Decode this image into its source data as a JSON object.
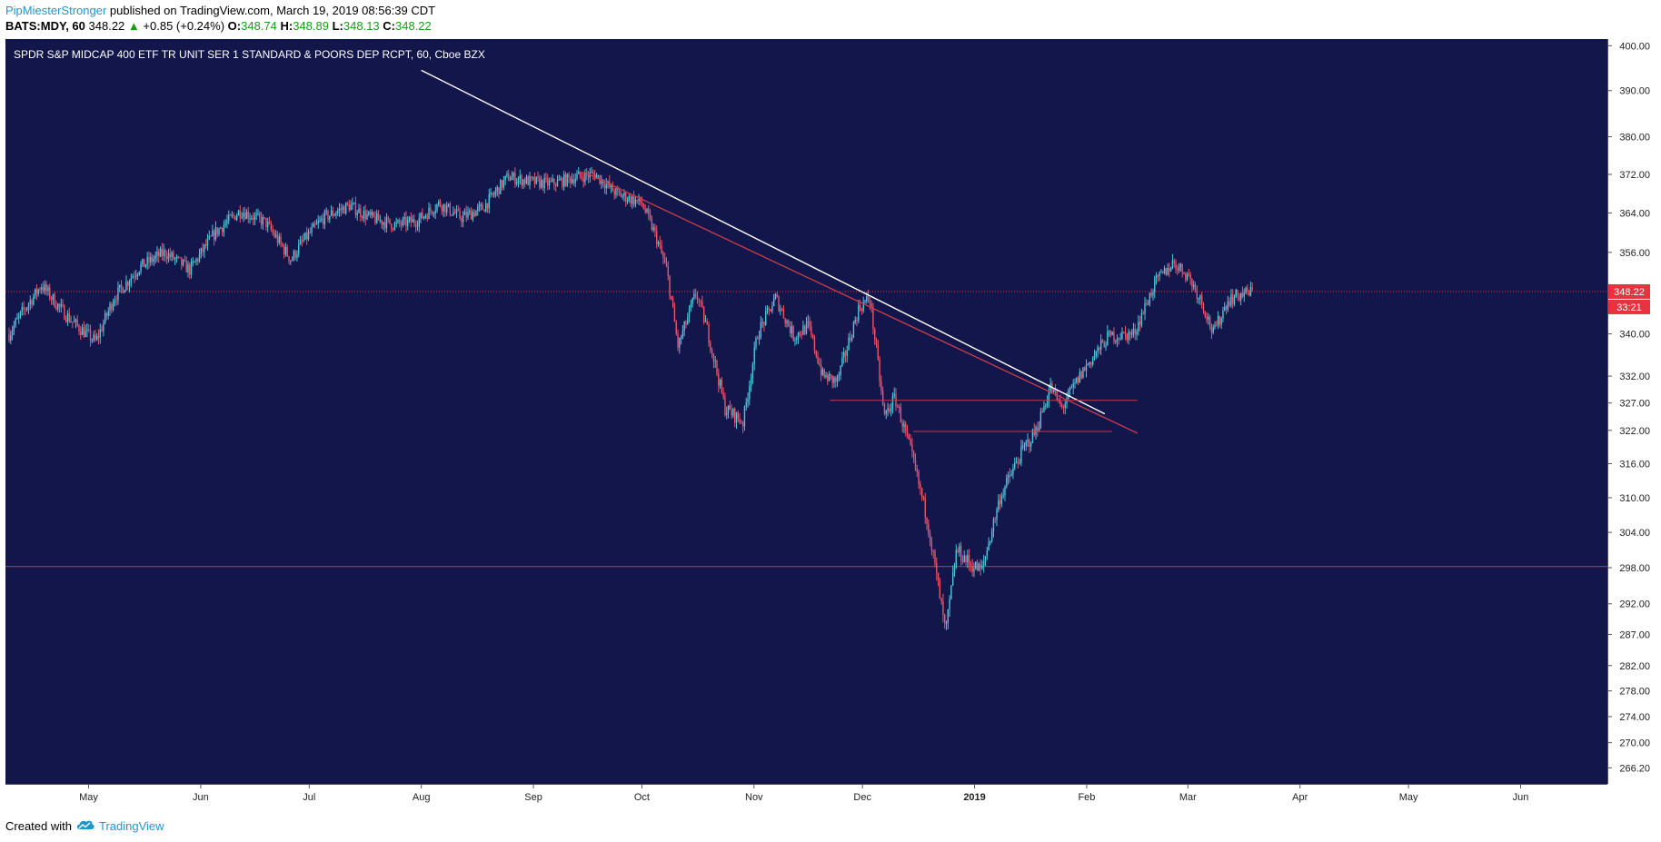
{
  "header": {
    "author": "PipMiesterStronger",
    "published_text": " published on TradingView.com, March 19, 2019 08:56:39 CDT",
    "symbol": "BATS:MDY, 60",
    "last": "348.22",
    "change_arrow": "▲",
    "change": "+0.85 (+0.24%)",
    "open_label": "O:",
    "open": "348.74",
    "high_label": "H:",
    "high": "348.89",
    "low_label": "L:",
    "low": "348.13",
    "close_label": "C:",
    "close": "348.22"
  },
  "footer": {
    "created_with": "Created with",
    "brand": "TradingView",
    "logo_icon": "tradingview-cloud-icon"
  },
  "colors": {
    "panel_bg": "#12164a",
    "axis_bg": "#ffffff",
    "up_candle": "#4fc3d9",
    "down_candle": "#e8546a",
    "trendline": "#ffffff",
    "support_line": "#c23b4a",
    "price_label_bg": "#e8333f",
    "header_up": "#1b9a1b",
    "brand_blue": "#2196c8"
  },
  "chart_data": {
    "type": "candlestick",
    "title": "SPDR S&P MIDCAP 400 ETF TR UNIT SER 1 STANDARD & POORS DEP RCPT, 60, Cboe BZX",
    "x_ticks": [
      "May",
      "Jun",
      "Jul",
      "Aug",
      "Sep",
      "Oct",
      "Nov",
      "Dec",
      "2019",
      "Feb",
      "Mar",
      "Apr",
      "May",
      "Jun"
    ],
    "x_tick_dates": [
      "2018-05-01",
      "2018-06-01",
      "2018-07-01",
      "2018-08-01",
      "2018-09-01",
      "2018-10-01",
      "2018-11-01",
      "2018-12-01",
      "2019-01-01",
      "2019-02-01",
      "2019-03-01",
      "2019-04-01",
      "2019-05-01",
      "2019-06-01"
    ],
    "x_range": [
      "2018-04-08",
      "2019-06-25"
    ],
    "y_ticks": [
      "400.00",
      "390.00",
      "380.00",
      "372.00",
      "364.00",
      "356.00",
      "348.00",
      "340.00",
      "332.00",
      "327.00",
      "322.00",
      "316.00",
      "310.00",
      "304.00",
      "298.00",
      "292.00",
      "287.00",
      "282.00",
      "278.00",
      "274.00",
      "270.00",
      "266.20"
    ],
    "y_range": [
      263.8,
      401.5
    ],
    "y_scale": "log",
    "last_price": {
      "label": "348.22",
      "value": 348.22,
      "countdown": "33:21"
    },
    "price_path": [
      {
        "date": "2018-04-09",
        "price": 340.0
      },
      {
        "date": "2018-04-13",
        "price": 344.5
      },
      {
        "date": "2018-04-18",
        "price": 349.5
      },
      {
        "date": "2018-04-23",
        "price": 345.0
      },
      {
        "date": "2018-04-27",
        "price": 342.0
      },
      {
        "date": "2018-05-03",
        "price": 338.5
      },
      {
        "date": "2018-05-08",
        "price": 347.0
      },
      {
        "date": "2018-05-15",
        "price": 353.0
      },
      {
        "date": "2018-05-22",
        "price": 356.0
      },
      {
        "date": "2018-05-29",
        "price": 352.5
      },
      {
        "date": "2018-06-05",
        "price": 360.0
      },
      {
        "date": "2018-06-12",
        "price": 364.5
      },
      {
        "date": "2018-06-19",
        "price": 362.0
      },
      {
        "date": "2018-06-26",
        "price": 354.5
      },
      {
        "date": "2018-06-29",
        "price": 358.0
      },
      {
        "date": "2018-07-05",
        "price": 363.0
      },
      {
        "date": "2018-07-12",
        "price": 365.5
      },
      {
        "date": "2018-07-18",
        "price": 363.0
      },
      {
        "date": "2018-07-25",
        "price": 361.5
      },
      {
        "date": "2018-07-31",
        "price": 362.5
      },
      {
        "date": "2018-08-06",
        "price": 366.0
      },
      {
        "date": "2018-08-12",
        "price": 363.0
      },
      {
        "date": "2018-08-18",
        "price": 365.0
      },
      {
        "date": "2018-08-25",
        "price": 371.5
      },
      {
        "date": "2018-08-31",
        "price": 370.5
      },
      {
        "date": "2018-09-06",
        "price": 370.0
      },
      {
        "date": "2018-09-13",
        "price": 371.5
      },
      {
        "date": "2018-09-18",
        "price": 372.0
      },
      {
        "date": "2018-09-24",
        "price": 368.0
      },
      {
        "date": "2018-10-01",
        "price": 366.0
      },
      {
        "date": "2018-10-05",
        "price": 359.0
      },
      {
        "date": "2018-10-08",
        "price": 352.0
      },
      {
        "date": "2018-10-11",
        "price": 337.5
      },
      {
        "date": "2018-10-16",
        "price": 348.0
      },
      {
        "date": "2018-10-19",
        "price": 341.0
      },
      {
        "date": "2018-10-24",
        "price": 326.0
      },
      {
        "date": "2018-10-29",
        "price": 323.5
      },
      {
        "date": "2018-11-02",
        "price": 340.0
      },
      {
        "date": "2018-11-07",
        "price": 347.0
      },
      {
        "date": "2018-11-12",
        "price": 339.5
      },
      {
        "date": "2018-11-16",
        "price": 341.5
      },
      {
        "date": "2018-11-20",
        "price": 332.0
      },
      {
        "date": "2018-11-24",
        "price": 331.0
      },
      {
        "date": "2018-11-30",
        "price": 345.0
      },
      {
        "date": "2018-12-03",
        "price": 347.0
      },
      {
        "date": "2018-12-07",
        "price": 324.5
      },
      {
        "date": "2018-12-10",
        "price": 328.0
      },
      {
        "date": "2018-12-14",
        "price": 319.0
      },
      {
        "date": "2018-12-19",
        "price": 306.0
      },
      {
        "date": "2018-12-24",
        "price": 287.0
      },
      {
        "date": "2018-12-27",
        "price": 301.0
      },
      {
        "date": "2018-12-31",
        "price": 298.5
      },
      {
        "date": "2019-01-03",
        "price": 297.5
      },
      {
        "date": "2019-01-08",
        "price": 310.0
      },
      {
        "date": "2019-01-14",
        "price": 318.0
      },
      {
        "date": "2019-01-18",
        "price": 322.0
      },
      {
        "date": "2019-01-22",
        "price": 330.0
      },
      {
        "date": "2019-01-25",
        "price": 326.0
      },
      {
        "date": "2019-01-31",
        "price": 333.0
      },
      {
        "date": "2019-02-07",
        "price": 339.5
      },
      {
        "date": "2019-02-14",
        "price": 340.0
      },
      {
        "date": "2019-02-20",
        "price": 350.0
      },
      {
        "date": "2019-02-25",
        "price": 354.0
      },
      {
        "date": "2019-03-01",
        "price": 351.5
      },
      {
        "date": "2019-03-05",
        "price": 346.0
      },
      {
        "date": "2019-03-08",
        "price": 340.0
      },
      {
        "date": "2019-03-12",
        "price": 346.5
      },
      {
        "date": "2019-03-15",
        "price": 347.5
      },
      {
        "date": "2019-03-19",
        "price": 348.22
      }
    ],
    "drawings": [
      {
        "type": "trendline",
        "color": "#ffffff",
        "from": {
          "date": "2018-08-01",
          "price": 394.5
        },
        "to": {
          "date": "2019-02-06",
          "price": 325.0
        }
      },
      {
        "type": "trendline",
        "color": "#c23b4a",
        "from": {
          "date": "2018-09-15",
          "price": 372.5
        },
        "to": {
          "date": "2019-02-15",
          "price": 321.5
        }
      },
      {
        "type": "horizontal_segment",
        "color": "#c23b4a",
        "price": 327.5,
        "from": "2018-11-22",
        "to": "2019-02-15"
      },
      {
        "type": "horizontal_segment",
        "color": "#c23b4a",
        "price": 321.8,
        "from": "2018-12-15",
        "to": "2019-02-08"
      },
      {
        "type": "horizontal_line",
        "color": "#c23b4a",
        "price": 298.2
      },
      {
        "type": "horizontal_line",
        "color": "#e8333f",
        "style": "dotted",
        "price": 348.22
      }
    ]
  }
}
